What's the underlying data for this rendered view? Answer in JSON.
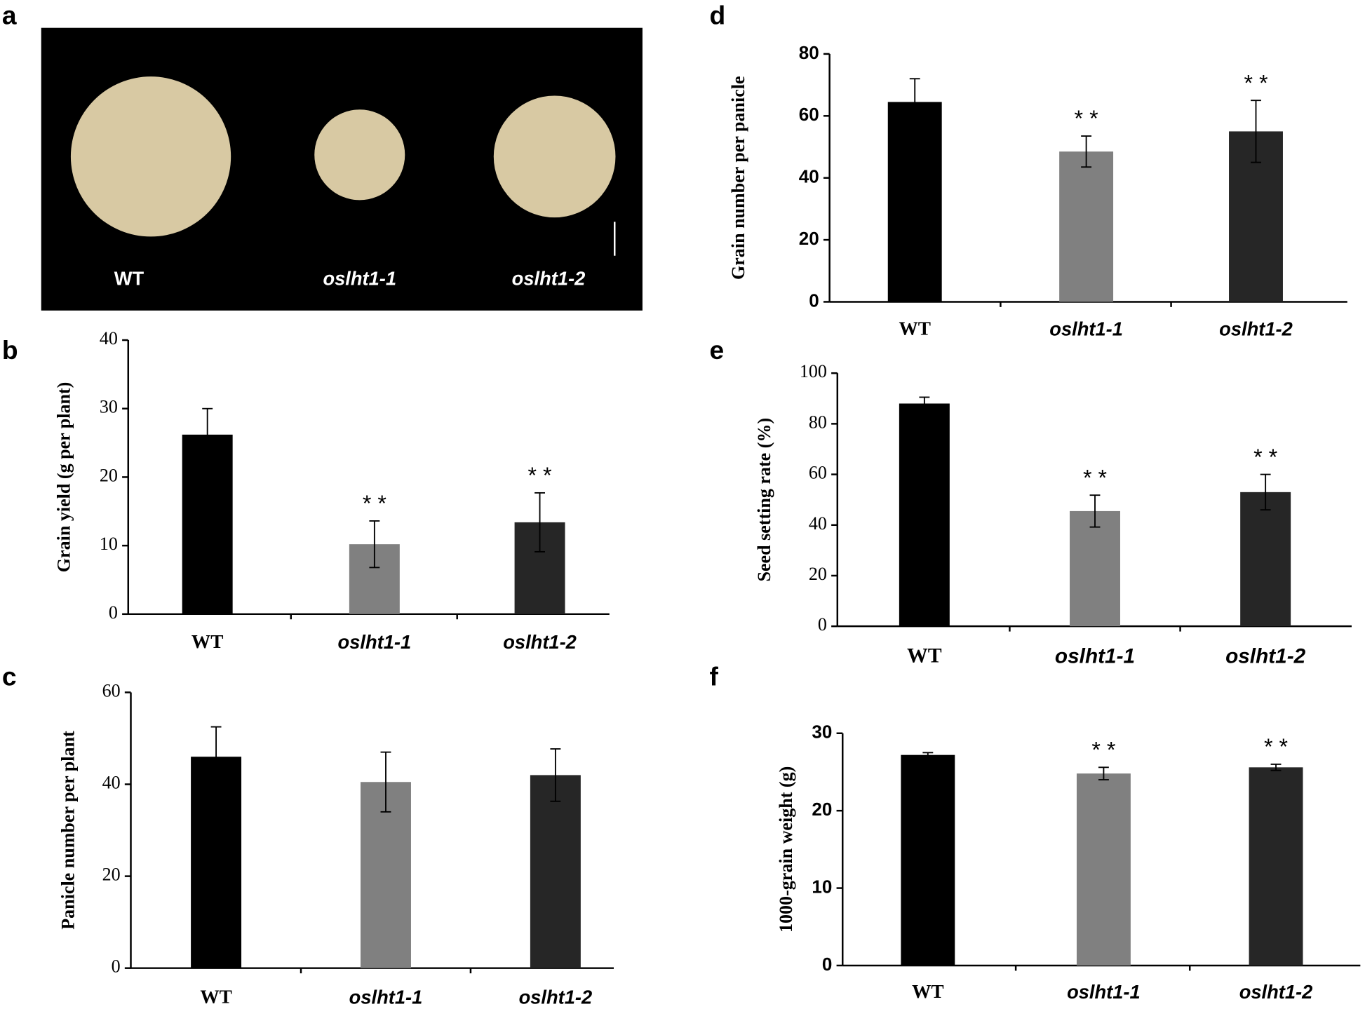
{
  "photo": {
    "panel": "a",
    "labels": [
      "WT",
      "oslht1-1",
      "oslht1-2"
    ]
  },
  "chart_data": [
    {
      "type": "bar",
      "panel": "b",
      "y_label": "Grain yield (g per plant)",
      "categories": [
        "WT",
        "oslht1-1",
        "oslht1-2"
      ],
      "values": [
        26.2,
        10.2,
        13.4
      ],
      "errors": [
        3.8,
        3.4,
        4.3
      ],
      "significance": [
        null,
        "* *",
        "* *"
      ],
      "colors": [
        "#000000",
        "#808080",
        "#262626"
      ],
      "ylim": [
        0,
        40
      ],
      "yticks": [
        0,
        10,
        20,
        30,
        40
      ]
    },
    {
      "type": "bar",
      "panel": "c",
      "y_label": "Panicle number per plant",
      "categories": [
        "WT",
        "oslht1-1",
        "oslht1-2"
      ],
      "values": [
        46,
        40.5,
        42
      ],
      "errors": [
        6.5,
        6.5,
        5.7
      ],
      "significance": [
        null,
        null,
        null
      ],
      "colors": [
        "#000000",
        "#808080",
        "#262626"
      ],
      "ylim": [
        0,
        60
      ],
      "yticks": [
        0,
        20,
        40,
        60
      ]
    },
    {
      "type": "bar",
      "panel": "d",
      "y_label": "Grain number per panicle",
      "categories": [
        "WT",
        "oslht1-1",
        "oslht1-2"
      ],
      "values": [
        64.5,
        48.5,
        55
      ],
      "errors": [
        7.5,
        5,
        10
      ],
      "significance": [
        null,
        "* *",
        "* *"
      ],
      "colors": [
        "#000000",
        "#808080",
        "#262626"
      ],
      "ylim": [
        0,
        80
      ],
      "yticks": [
        0,
        20,
        40,
        60,
        80
      ]
    },
    {
      "type": "bar",
      "panel": "e",
      "y_label": "Seed setting rate (%)",
      "categories": [
        "WT",
        "oslht1-1",
        "oslht1-2"
      ],
      "values": [
        88,
        45.5,
        53
      ],
      "errors": [
        2.5,
        6.3,
        7
      ],
      "significance": [
        null,
        "* *",
        "* *"
      ],
      "colors": [
        "#000000",
        "#808080",
        "#262626"
      ],
      "ylim": [
        0,
        100
      ],
      "yticks": [
        0,
        20,
        40,
        60,
        80,
        100
      ]
    },
    {
      "type": "bar",
      "panel": "f",
      "y_label": "1000-grain weight (g)",
      "categories": [
        "WT",
        "oslht1-1",
        "oslht1-2"
      ],
      "values": [
        27.2,
        24.8,
        25.6
      ],
      "errors": [
        0.3,
        0.8,
        0.4
      ],
      "significance": [
        null,
        "* *",
        "* *"
      ],
      "colors": [
        "#000000",
        "#808080",
        "#262626"
      ],
      "ylim": [
        0,
        30
      ],
      "yticks": [
        0,
        10,
        20,
        30
      ]
    }
  ]
}
